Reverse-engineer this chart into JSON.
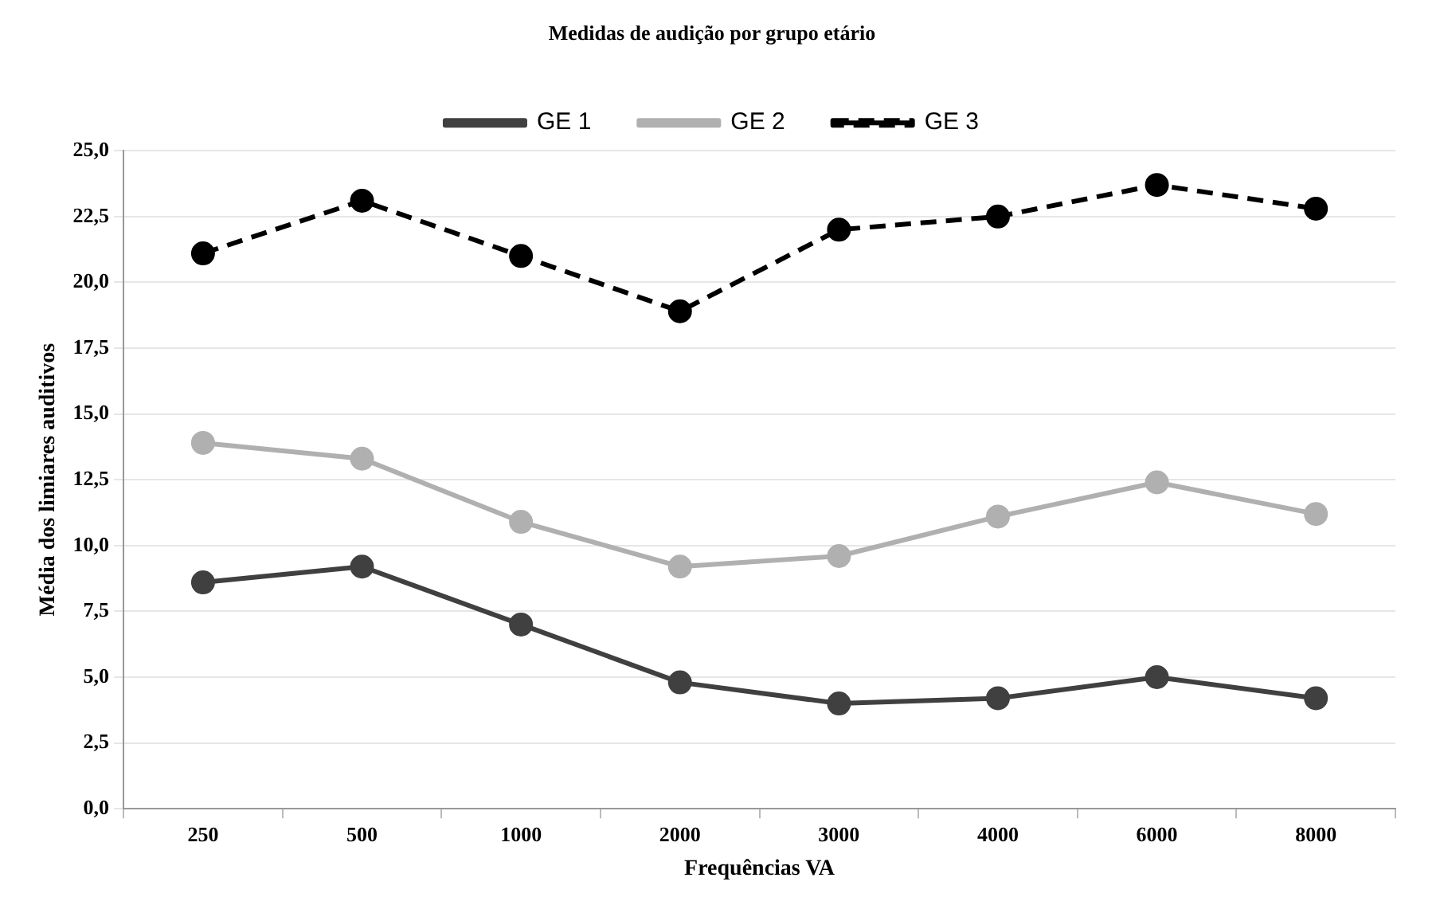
{
  "chart_data": {
    "type": "line",
    "title": "Medidas de audição por grupo etário",
    "xlabel": "Frequências VA",
    "ylabel": "Média dos limiares auditivos",
    "categories": [
      "250",
      "500",
      "1000",
      "2000",
      "3000",
      "4000",
      "6000",
      "8000"
    ],
    "series": [
      {
        "name": "GE 1",
        "color": "#404040",
        "line_style": "solid",
        "values": [
          8.6,
          9.2,
          7.0,
          4.8,
          4.0,
          4.2,
          5.0,
          4.2
        ]
      },
      {
        "name": "GE 2",
        "color": "#b0b0b0",
        "line_style": "solid",
        "values": [
          13.9,
          13.3,
          10.9,
          9.2,
          9.6,
          11.1,
          12.4,
          11.2
        ]
      },
      {
        "name": "GE 3",
        "color": "#000000",
        "line_style": "dashed",
        "values": [
          21.1,
          23.1,
          21.0,
          18.9,
          22.0,
          22.5,
          23.7,
          22.8
        ]
      }
    ],
    "ylim": [
      0,
      25
    ],
    "yticks": [
      {
        "value": 0,
        "label": "0,0"
      },
      {
        "value": 2.5,
        "label": "2,5"
      },
      {
        "value": 5,
        "label": "5,0"
      },
      {
        "value": 7.5,
        "label": "7,5"
      },
      {
        "value": 10,
        "label": "10,0"
      },
      {
        "value": 12.5,
        "label": "12,5"
      },
      {
        "value": 15,
        "label": "15,0"
      },
      {
        "value": 17.5,
        "label": "17,5"
      },
      {
        "value": 20,
        "label": "20,0"
      },
      {
        "value": 22.5,
        "label": "22,5"
      },
      {
        "value": 25,
        "label": "25,0"
      }
    ],
    "grid": "y",
    "legend": "top",
    "marker": "circle"
  }
}
